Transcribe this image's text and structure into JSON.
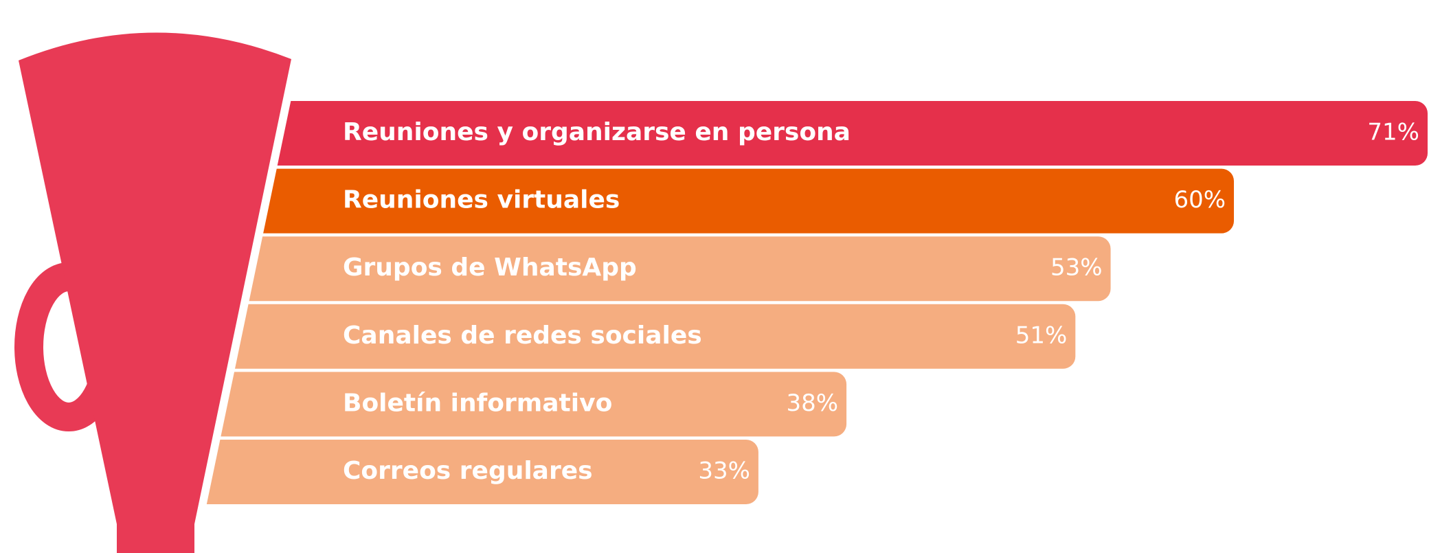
{
  "chart_data": {
    "type": "bar",
    "orientation": "horizontal",
    "categories": [
      "Reuniones y organizarse en persona",
      "Reuniones virtuales",
      "Grupos de WhatsApp",
      "Canales de redes sociales",
      "Boletín informativo",
      "Correos regulares"
    ],
    "values": [
      71,
      60,
      53,
      51,
      38,
      33
    ],
    "value_labels": [
      "71%",
      "60%",
      "53%",
      "51%",
      "38%",
      "33%"
    ],
    "colors": [
      "#e5304b",
      "#ea5c00",
      "#f5ad80",
      "#f5ad80",
      "#f5ad80",
      "#f5ad80"
    ]
  }
}
